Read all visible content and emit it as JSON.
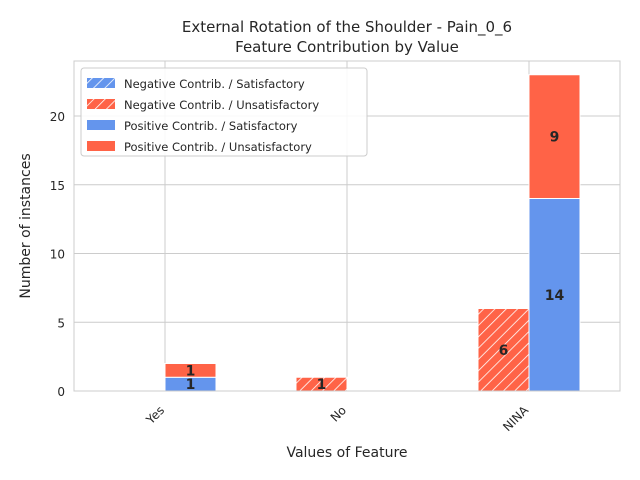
{
  "chart_data": {
    "type": "bar",
    "title": "External Rotation of the Shoulder - Pain_0_6",
    "subtitle": "Feature Contribution by Value",
    "xlabel": "Values of Feature",
    "ylabel": "Number of instances",
    "categories": [
      "Yes",
      "No",
      "NINA"
    ],
    "ylim": [
      0,
      24
    ],
    "yticks": [
      0,
      5,
      10,
      15,
      20
    ],
    "grid": true,
    "legend_position": "top-left",
    "colors": {
      "satisfactory": "#6495ED",
      "unsatisfactory": "#FF6347"
    },
    "series": [
      {
        "name": "Negative Contrib. / Satisfactory",
        "group": "negative",
        "outcome": "satisfactory",
        "hatched": true,
        "values": [
          0,
          0,
          0
        ]
      },
      {
        "name": "Negative Contrib. / Unsatisfactory",
        "group": "negative",
        "outcome": "unsatisfactory",
        "hatched": true,
        "values": [
          0,
          1,
          6
        ]
      },
      {
        "name": "Positive Contrib. / Satisfactory",
        "group": "positive",
        "outcome": "satisfactory",
        "hatched": false,
        "values": [
          1,
          0,
          14
        ]
      },
      {
        "name": "Positive Contrib. / Unsatisfactory",
        "group": "positive",
        "outcome": "unsatisfactory",
        "hatched": false,
        "values": [
          1,
          0,
          9
        ]
      }
    ]
  }
}
